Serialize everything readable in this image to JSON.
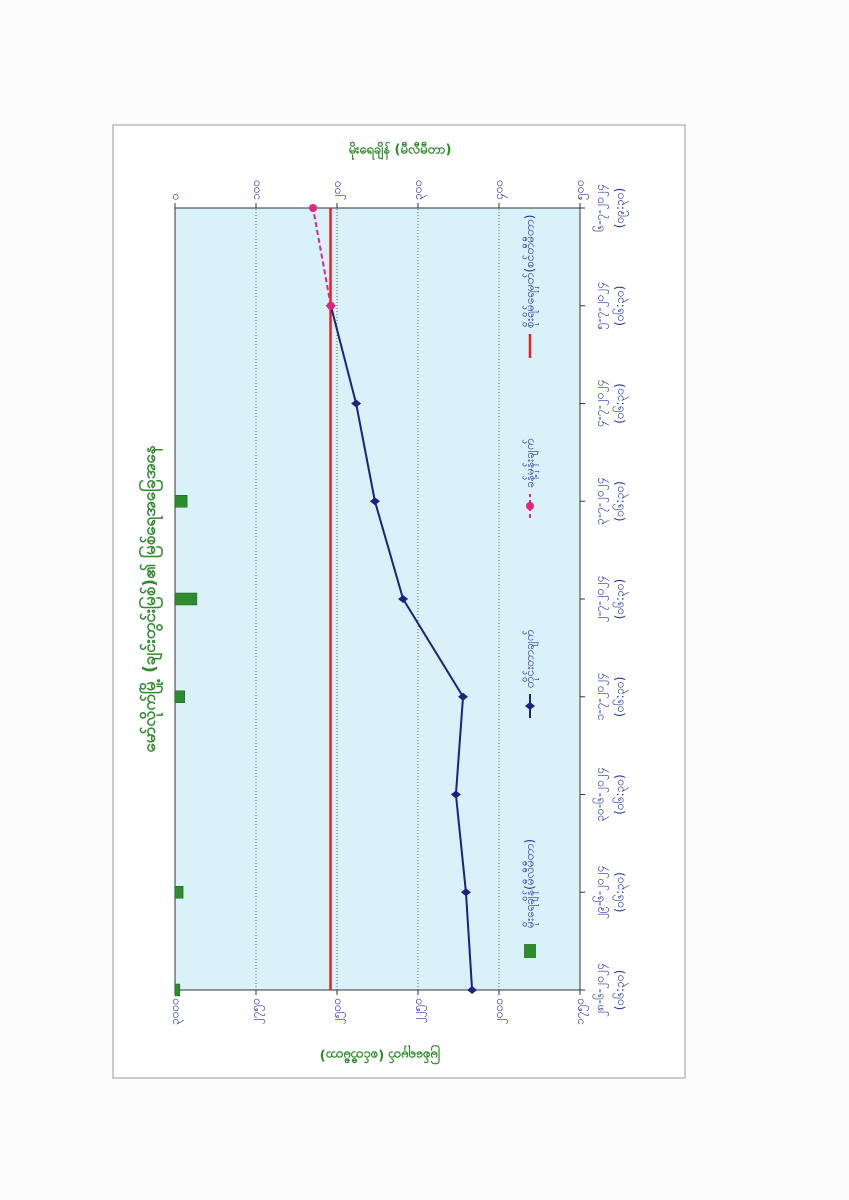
{
  "chart_data": {
    "type": "combo",
    "title": "မော်လိုက်မြို့ (ချင်းတွင်းမြစ်)၏ မြစ်ရေအခြေအနေ",
    "ylabel": "မြစ်ရေမှတ် (စင်တီမီတာ)",
    "y2label": "မိုးရေချိန် (မီလီမီတာ)",
    "categories": [
      "၂၈-၆-၂၀၂၄",
      "၂၉-၆-၂၀၂၄",
      "၃၀-၆-၂၀၂၄",
      "၁-၇-၂၀၂၄",
      "၂-၇-၂၀၂၄",
      "၃-၇-၂၀၂၄",
      "၄-၇-၂၀၂၄",
      "၅-၇-၂၀၂၄",
      "၆-၇-၂၀၂၄"
    ],
    "category_times": [
      "(၀၆:၃၀)",
      "(၀၆:၃၀)",
      "(၀၆:၃၀)",
      "(၀၆:၃၀)",
      "(၀၆:၃၀)",
      "(၀၆:၃၀)",
      "(၀၆:၃၀)",
      "(၀၆:၃၀)",
      "(၀၉:၃၀)"
    ],
    "ylim": [
      1750,
      3000
    ],
    "yticks": [
      {
        "value": 1750,
        "label": "၁၇၅၀"
      },
      {
        "value": 2000,
        "label": "၂၀၀၀"
      },
      {
        "value": 2250,
        "label": "၂၂၅၀"
      },
      {
        "value": 2500,
        "label": "၂၅၀၀"
      },
      {
        "value": 2750,
        "label": "၂၇၅၀"
      },
      {
        "value": 3000,
        "label": "၃၀၀၀"
      }
    ],
    "y2lim": [
      0,
      500
    ],
    "y2ticks": [
      {
        "value": 0,
        "label": "၀"
      },
      {
        "value": 100,
        "label": "၁၀၀"
      },
      {
        "value": 200,
        "label": "၂၀၀"
      },
      {
        "value": 300,
        "label": "၃၀၀"
      },
      {
        "value": 400,
        "label": "၄၀၀"
      },
      {
        "value": 500,
        "label": "၅၀၀"
      }
    ],
    "y2_inverted": true,
    "grid": true,
    "series": [
      {
        "name": "မိုးရေချိန်(မီလီမီတာ)",
        "type": "bar",
        "axis": "y2",
        "color": "#2e8b2e",
        "values": [
          6,
          10,
          0,
          12,
          27,
          15,
          0,
          0,
          0
        ]
      },
      {
        "name": "တိုင်းတာချက်",
        "type": "line",
        "color": "#1a237e",
        "values": [
          2083,
          2102,
          2133,
          2111,
          2296,
          2383,
          2441,
          2519,
          null
        ]
      },
      {
        "name": "ခန့်မှန်းချက်",
        "type": "dashed",
        "color": "#e8237f",
        "values": [
          null,
          null,
          null,
          null,
          null,
          null,
          null,
          2519,
          2574
        ]
      },
      {
        "name": "စိုးရိမ်ရေမှတ်(စင်တီမီတာ)",
        "type": "level",
        "color": "#e82020",
        "values": [
          2520,
          2520,
          2520,
          2520,
          2520,
          2520,
          2520,
          2520,
          2520
        ]
      }
    ]
  }
}
